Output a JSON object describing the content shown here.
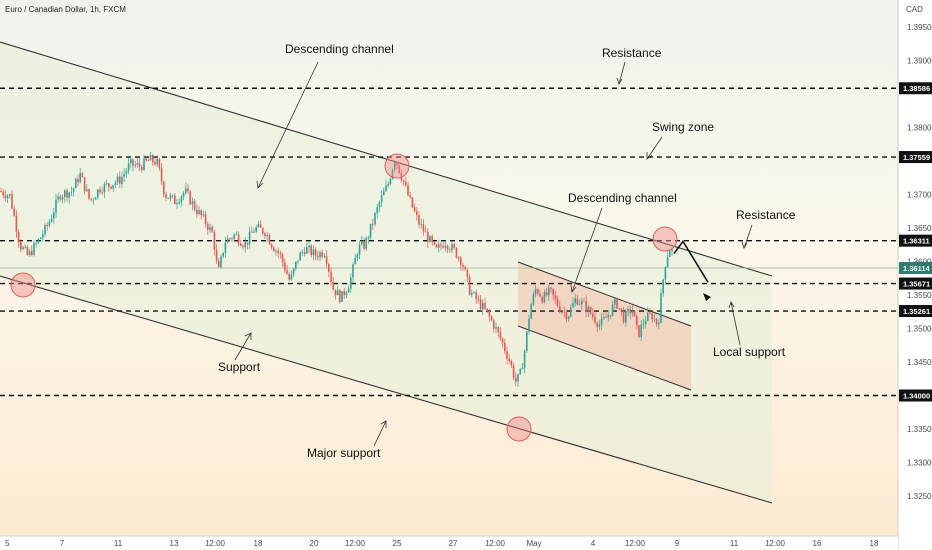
{
  "chart_data": {
    "type": "candlestick",
    "title": "Euro / Canadian Dollar, 1h, FXCM",
    "currency": "CAD",
    "y_ticks": [
      "1.32500",
      "1.33000",
      "1.33500",
      "1.34500",
      "1.35000",
      "1.35500",
      "1.36000",
      "1.36500",
      "1.37000",
      "1.38000",
      "1.39000",
      "1.39500"
    ],
    "x_ticks": [
      "5",
      "7",
      "11",
      "13",
      "12:00",
      "18",
      "20",
      "12:00",
      "25",
      "27",
      "12:00",
      "May",
      "4",
      "12:00",
      "9",
      "11",
      "12:00",
      "16",
      "18"
    ],
    "ylim": [
      1.3232,
      1.3986
    ],
    "levels": [
      {
        "label": "1.38586",
        "value": 1.38586,
        "style": "dashed"
      },
      {
        "label": "1.37559",
        "value": 1.37559,
        "style": "dashed"
      },
      {
        "label": "1.36311",
        "value": 1.36311,
        "style": "dashed"
      },
      {
        "label": "1.35671",
        "value": 1.35671,
        "style": "dashed"
      },
      {
        "label": "1.35261",
        "value": 1.35261,
        "style": "dashed"
      },
      {
        "label": "1.34000",
        "value": 1.34,
        "style": "dashed"
      }
    ],
    "current_price": {
      "label": "1.36114",
      "value": 1.36114
    },
    "annotations": [
      {
        "text": "Descending channel"
      },
      {
        "text": "Resistance"
      },
      {
        "text": "Swing zone"
      },
      {
        "text": "Descending channel"
      },
      {
        "text": "Resistance"
      },
      {
        "text": "Support"
      },
      {
        "text": "Local support"
      },
      {
        "text": "Major support"
      }
    ],
    "price_path": [
      [
        0,
        1.3705
      ],
      [
        10,
        1.3698
      ],
      [
        20,
        1.3625
      ],
      [
        28,
        1.3608
      ],
      [
        38,
        1.363
      ],
      [
        48,
        1.3655
      ],
      [
        60,
        1.37
      ],
      [
        72,
        1.3705
      ],
      [
        80,
        1.373
      ],
      [
        90,
        1.369
      ],
      [
        100,
        1.371
      ],
      [
        110,
        1.3715
      ],
      [
        120,
        1.3722
      ],
      [
        130,
        1.3745
      ],
      [
        140,
        1.3742
      ],
      [
        150,
        1.3752
      ],
      [
        157,
        1.3748
      ],
      [
        165,
        1.37
      ],
      [
        175,
        1.369
      ],
      [
        185,
        1.3705
      ],
      [
        195,
        1.368
      ],
      [
        205,
        1.366
      ],
      [
        213,
        1.364
      ],
      [
        218,
        1.358
      ],
      [
        225,
        1.363
      ],
      [
        235,
        1.364
      ],
      [
        245,
        1.3625
      ],
      [
        255,
        1.365
      ],
      [
        265,
        1.3645
      ],
      [
        272,
        1.3625
      ],
      [
        280,
        1.361
      ],
      [
        290,
        1.357
      ],
      [
        298,
        1.3605
      ],
      [
        305,
        1.362
      ],
      [
        315,
        1.361
      ],
      [
        325,
        1.3615
      ],
      [
        333,
        1.356
      ],
      [
        341,
        1.3545
      ],
      [
        350,
        1.357
      ],
      [
        358,
        1.362
      ],
      [
        365,
        1.3625
      ],
      [
        372,
        1.3655
      ],
      [
        380,
        1.369
      ],
      [
        388,
        1.3715
      ],
      [
        395,
        1.3755
      ],
      [
        402,
        1.3725
      ],
      [
        410,
        1.369
      ],
      [
        418,
        1.366
      ],
      [
        428,
        1.3635
      ],
      [
        436,
        1.3615
      ],
      [
        445,
        1.363
      ],
      [
        455,
        1.3615
      ],
      [
        462,
        1.36
      ],
      [
        470,
        1.3555
      ],
      [
        478,
        1.354
      ],
      [
        486,
        1.3525
      ],
      [
        494,
        1.3505
      ],
      [
        502,
        1.348
      ],
      [
        510,
        1.345
      ],
      [
        516,
        1.342
      ],
      [
        520,
        1.343
      ],
      [
        525,
        1.347
      ],
      [
        530,
        1.353
      ],
      [
        536,
        1.356
      ],
      [
        543,
        1.3545
      ],
      [
        550,
        1.3555
      ],
      [
        560,
        1.353
      ],
      [
        568,
        1.352
      ],
      [
        576,
        1.3545
      ],
      [
        584,
        1.3535
      ],
      [
        592,
        1.352
      ],
      [
        600,
        1.3505
      ],
      [
        608,
        1.352
      ],
      [
        616,
        1.354
      ],
      [
        624,
        1.3515
      ],
      [
        632,
        1.353
      ],
      [
        638,
        1.349
      ],
      [
        645,
        1.3515
      ],
      [
        652,
        1.352
      ],
      [
        658,
        1.3505
      ],
      [
        662,
        1.356
      ],
      [
        666,
        1.3605
      ],
      [
        670,
        1.362
      ],
      [
        674,
        1.3612
      ]
    ],
    "projection": [
      [
        674,
        1.3612
      ],
      [
        683,
        1.363
      ],
      [
        708,
        1.3569
      ]
    ]
  }
}
